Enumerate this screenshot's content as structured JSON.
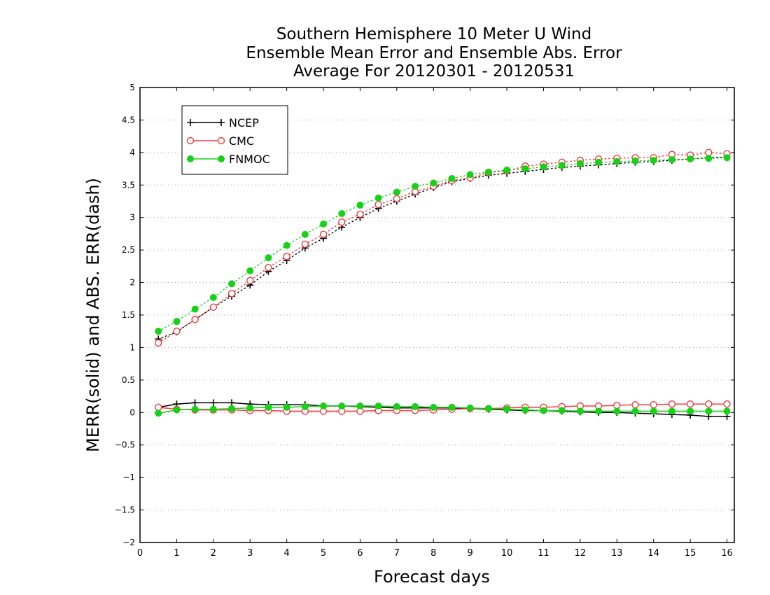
{
  "chart_data": {
    "type": "line",
    "title_lines": [
      "Southern Hemisphere 10 Meter U Wind",
      "Ensemble Mean Error and Ensemble Abs. Error",
      "Average For 20120301 - 20120531"
    ],
    "xlabel": "Forecast days",
    "ylabel": "MERR(solid) and ABS. ERR(dash)",
    "xlim": [
      0,
      16.2
    ],
    "ylim": [
      -2,
      5
    ],
    "x_ticks": [
      0,
      1,
      2,
      3,
      4,
      5,
      6,
      7,
      8,
      9,
      10,
      11,
      12,
      13,
      14,
      15,
      16
    ],
    "y_ticks": [
      -2,
      -1.5,
      -1,
      -0.5,
      0,
      0.5,
      1,
      1.5,
      2,
      2.5,
      3,
      3.5,
      4,
      4.5,
      5
    ],
    "y_tick_labels": [
      "−2",
      "−1.5",
      "−1",
      "−0.5",
      "0",
      "0.5",
      "1",
      "1.5",
      "2",
      "2.5",
      "3",
      "3.5",
      "4",
      "4.5",
      "5"
    ],
    "grid": "horizontal dotted",
    "legend_position": "top-left",
    "x": [
      0.5,
      1,
      1.5,
      2,
      2.5,
      3,
      3.5,
      4,
      4.5,
      5,
      5.5,
      6,
      6.5,
      7,
      7.5,
      8,
      8.5,
      9,
      9.5,
      10,
      10.5,
      11,
      11.5,
      12,
      12.5,
      13,
      13.5,
      14,
      14.5,
      15,
      15.5,
      16
    ],
    "series": [
      {
        "name": "NCEP",
        "color": "#000000",
        "marker": "plus",
        "merr": [
          0.08,
          0.13,
          0.15,
          0.15,
          0.15,
          0.13,
          0.12,
          0.12,
          0.12,
          0.1,
          0.1,
          0.09,
          0.08,
          0.07,
          0.07,
          0.07,
          0.07,
          0.06,
          0.05,
          0.04,
          0.03,
          0.03,
          0.02,
          0.01,
          0.0,
          0.0,
          -0.01,
          -0.02,
          -0.03,
          -0.04,
          -0.06,
          -0.06
        ],
        "abs_err": [
          1.13,
          1.24,
          1.43,
          1.62,
          1.79,
          1.96,
          2.17,
          2.34,
          2.53,
          2.68,
          2.85,
          3.0,
          3.14,
          3.25,
          3.36,
          3.46,
          3.55,
          3.6,
          3.65,
          3.68,
          3.71,
          3.74,
          3.77,
          3.79,
          3.81,
          3.83,
          3.85,
          3.86,
          3.88,
          3.9,
          3.92,
          3.93
        ]
      },
      {
        "name": "CMC",
        "color": "#ef3b3b",
        "marker": "open-circle",
        "merr": [
          0.08,
          0.05,
          0.04,
          0.04,
          0.04,
          0.03,
          0.03,
          0.02,
          0.02,
          0.02,
          0.02,
          0.02,
          0.03,
          0.03,
          0.03,
          0.04,
          0.05,
          0.06,
          0.06,
          0.07,
          0.08,
          0.08,
          0.09,
          0.1,
          0.1,
          0.11,
          0.12,
          0.12,
          0.13,
          0.13,
          0.13,
          0.13
        ],
        "abs_err": [
          1.07,
          1.25,
          1.43,
          1.62,
          1.83,
          2.03,
          2.23,
          2.4,
          2.59,
          2.74,
          2.93,
          3.05,
          3.2,
          3.29,
          3.4,
          3.48,
          3.57,
          3.61,
          3.69,
          3.72,
          3.79,
          3.82,
          3.85,
          3.88,
          3.9,
          3.91,
          3.92,
          3.92,
          3.97,
          3.96,
          4.0,
          3.98
        ]
      },
      {
        "name": "FNMOC",
        "color": "#19d019",
        "marker": "filled-circle",
        "merr": [
          -0.01,
          0.04,
          0.05,
          0.05,
          0.06,
          0.07,
          0.08,
          0.08,
          0.09,
          0.1,
          0.1,
          0.1,
          0.1,
          0.09,
          0.09,
          0.08,
          0.08,
          0.07,
          0.06,
          0.05,
          0.04,
          0.03,
          0.03,
          0.02,
          0.02,
          0.02,
          0.02,
          0.02,
          0.02,
          0.02,
          0.02,
          0.02
        ],
        "abs_err": [
          1.25,
          1.4,
          1.59,
          1.77,
          1.98,
          2.18,
          2.38,
          2.57,
          2.74,
          2.9,
          3.06,
          3.19,
          3.3,
          3.39,
          3.48,
          3.53,
          3.6,
          3.66,
          3.7,
          3.73,
          3.75,
          3.78,
          3.8,
          3.83,
          3.85,
          3.86,
          3.87,
          3.88,
          3.89,
          3.9,
          3.91,
          3.92
        ]
      }
    ]
  }
}
